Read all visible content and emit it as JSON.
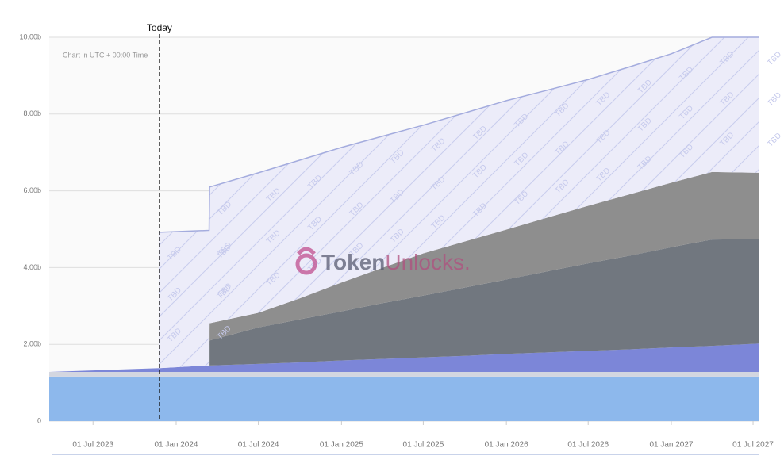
{
  "chart_data": {
    "type": "stacked_area",
    "note": "Chart in UTC + 00:00 Time",
    "watermark": [
      "Token",
      "Unlocks."
    ],
    "tbd_label": "TBD",
    "today": {
      "label": "Today",
      "x": "2023-11-25"
    },
    "x": [
      "2023-03-26",
      "2023-11-25",
      "2024-03-14",
      "2024-03-15",
      "2024-07-01",
      "2024-10-01",
      "2025-01-01",
      "2025-04-01",
      "2025-07-01",
      "2025-10-01",
      "2026-01-01",
      "2026-04-01",
      "2026-07-01",
      "2026-10-01",
      "2027-01-01",
      "2027-04-01",
      "2027-07-15"
    ],
    "xlim": [
      "2023-03-26",
      "2027-07-15"
    ],
    "xticks": [
      {
        "value": "2023-07-01",
        "label": "01 Jul 2023"
      },
      {
        "value": "2024-01-01",
        "label": "01 Jan 2024"
      },
      {
        "value": "2024-07-01",
        "label": "01 Jul 2024"
      },
      {
        "value": "2025-01-01",
        "label": "01 Jan 2025"
      },
      {
        "value": "2025-07-01",
        "label": "01 Jul 2025"
      },
      {
        "value": "2026-01-01",
        "label": "01 Jan 2026"
      },
      {
        "value": "2026-07-01",
        "label": "01 Jul 2026"
      },
      {
        "value": "2027-01-01",
        "label": "01 Jan 2027"
      },
      {
        "value": "2027-07-01",
        "label": "01 Jul 2027"
      }
    ],
    "ylim": [
      0,
      10
    ],
    "yticks": [
      0,
      {
        "value": 2,
        "label": "2.00b"
      },
      {
        "value": 4,
        "label": "4.00b"
      },
      {
        "value": 6,
        "label": "6.00b"
      },
      {
        "value": 8,
        "label": "8.00b"
      },
      {
        "value": 10,
        "label": "10.00b"
      }
    ],
    "grid": true,
    "series": [
      {
        "color": "#8db8ec",
        "values": [
          1.16,
          1.16,
          1.16,
          1.16,
          1.16,
          1.16,
          1.16,
          1.16,
          1.16,
          1.16,
          1.16,
          1.16,
          1.16,
          1.16,
          1.16,
          1.16,
          1.16
        ]
      },
      {
        "color": "#d3d6e0",
        "values": [
          0.12,
          0.12,
          0.12,
          0.12,
          0.12,
          0.12,
          0.12,
          0.12,
          0.12,
          0.12,
          0.12,
          0.12,
          0.12,
          0.12,
          0.12,
          0.12,
          0.12
        ]
      },
      {
        "color": "#7c86d8",
        "values": [
          0,
          0.1,
          0.17,
          0.17,
          0.21,
          0.25,
          0.3,
          0.34,
          0.38,
          0.42,
          0.47,
          0.51,
          0.55,
          0.59,
          0.64,
          0.68,
          0.74
        ]
      },
      {
        "color": "#71777f",
        "values": [
          null,
          null,
          null,
          0.65,
          0.95,
          1.12,
          1.28,
          1.45,
          1.61,
          1.78,
          1.94,
          2.11,
          2.28,
          2.44,
          2.61,
          2.77,
          2.72
        ]
      },
      {
        "color": "#8e8e8e",
        "values": [
          null,
          null,
          null,
          0.45,
          0.38,
          0.55,
          0.75,
          0.92,
          1.1,
          1.2,
          1.3,
          1.4,
          1.5,
          1.6,
          1.68,
          1.76,
          1.73
        ]
      },
      {
        "color": "#a4acde",
        "hatched": true,
        "values": [
          null,
          3.54,
          3.52,
          3.55,
          3.65,
          3.6,
          3.52,
          3.43,
          3.34,
          3.35,
          3.36,
          3.32,
          3.29,
          3.32,
          3.36,
          3.51,
          3.53
        ]
      }
    ]
  }
}
